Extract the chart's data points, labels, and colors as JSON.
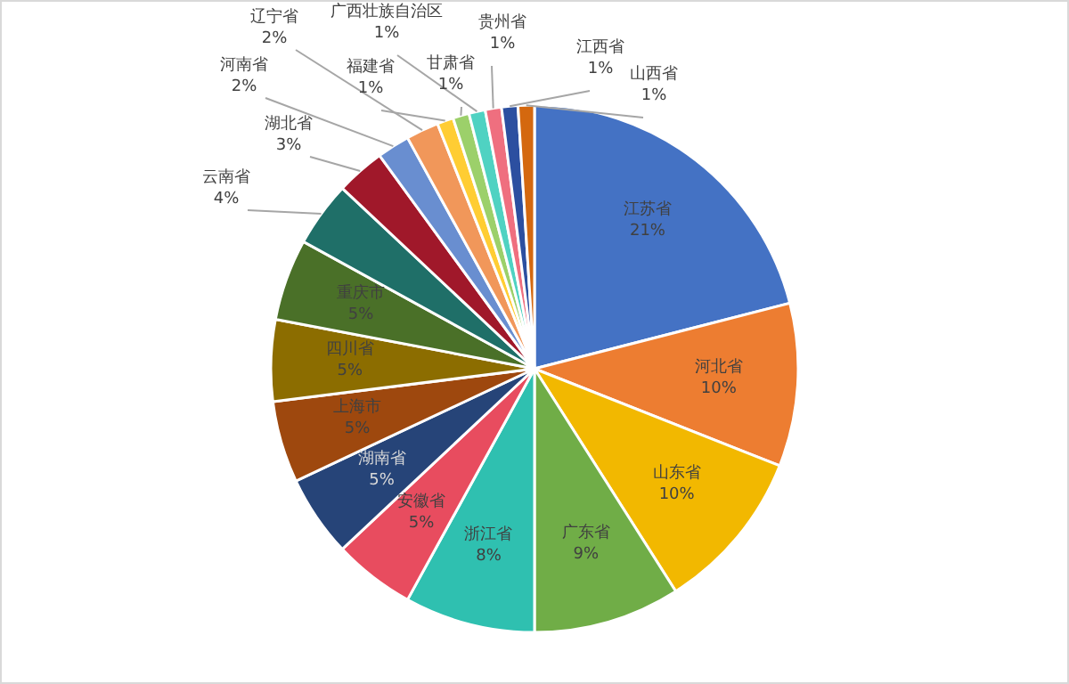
{
  "chart_data": {
    "type": "pie",
    "categories": [
      "江苏省",
      "河北省",
      "山东省",
      "广东省",
      "浙江省",
      "安徽省",
      "湖南省",
      "上海市",
      "四川省",
      "重庆市",
      "云南省",
      "湖北省",
      "河南省",
      "辽宁省",
      "福建省",
      "甘肃省",
      "广西壮族自治区",
      "贵州省",
      "江西省",
      "山西省"
    ],
    "values": [
      21,
      10,
      10,
      9,
      8,
      5,
      5,
      5,
      5,
      5,
      4,
      3,
      2,
      2,
      1,
      1,
      1,
      1,
      1,
      1
    ],
    "colors": [
      "#4472c4",
      "#ed7d31",
      "#f2b800",
      "#70ad47",
      "#2fc0b0",
      "#e84c5f",
      "#264478",
      "#9e480e",
      "#8c6d00",
      "#4a7028",
      "#1f6f68",
      "#a0182a",
      "#698ed0",
      "#f1975a",
      "#ffcd33",
      "#9cd06a",
      "#4fd2c2",
      "#ef6f7f",
      "#2c4fa0",
      "#d4680f"
    ],
    "value_labels": [
      "21%",
      "10%",
      "10%",
      "9%",
      "8%",
      "5%",
      "5%",
      "5%",
      "5%",
      "5%",
      "4%",
      "3%",
      "2%",
      "2%",
      "1%",
      "1%",
      "1%",
      "1%",
      "1%",
      "1%"
    ]
  }
}
